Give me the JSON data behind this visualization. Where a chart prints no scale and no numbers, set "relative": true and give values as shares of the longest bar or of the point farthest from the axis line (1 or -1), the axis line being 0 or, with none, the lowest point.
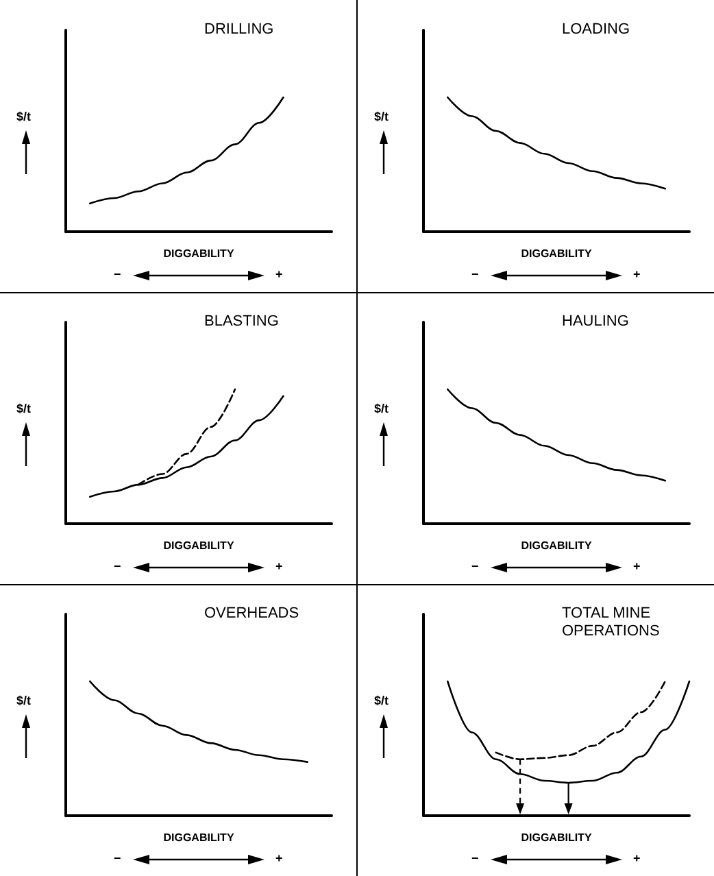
{
  "chart_data": [
    {
      "type": "line",
      "title": "DRILLING",
      "ylabel": "$/t",
      "xlabel": "DIGGABILITY",
      "annotations": [
        "−",
        "+"
      ],
      "relative": true,
      "tick_labels": false,
      "categories": [
        null,
        null,
        null,
        null,
        null,
        null,
        null,
        null,
        null,
        null,
        null,
        null
      ],
      "series": [
        {
          "color": "#000000",
          "values": [
            null,
            0.21,
            0.25,
            0.3,
            0.36,
            0.44,
            0.53,
            0.65,
            0.81,
            1.0,
            null,
            null
          ]
        }
      ]
    },
    {
      "type": "line",
      "title": "LOADING",
      "ylabel": "$/t",
      "xlabel": "DIGGABILITY",
      "annotations": [
        "−",
        "+"
      ],
      "relative": true,
      "tick_labels": false,
      "categories": [
        null,
        null,
        null,
        null,
        null,
        null,
        null,
        null,
        null,
        null,
        null,
        null
      ],
      "series": [
        {
          "color": "#000000",
          "values": [
            null,
            1.0,
            0.86,
            0.75,
            0.66,
            0.58,
            0.51,
            0.45,
            0.4,
            0.36,
            0.32,
            null
          ]
        }
      ]
    },
    {
      "type": "line",
      "title": "BLASTING",
      "ylabel": "$/t",
      "xlabel": "DIGGABILITY",
      "annotations": [
        "−",
        "+"
      ],
      "relative": true,
      "tick_labels": false,
      "categories": [
        null,
        null,
        null,
        null,
        null,
        null,
        null,
        null,
        null,
        null,
        null,
        null
      ],
      "series": [
        {
          "color": "#000000",
          "values": [
            null,
            0.2,
            0.24,
            0.29,
            0.34,
            0.42,
            0.5,
            0.62,
            0.77,
            0.95,
            null,
            null
          ]
        },
        {
          "color": "#000000",
          "line_style": "dashed",
          "values": [
            null,
            null,
            null,
            0.29,
            0.37,
            0.52,
            0.72,
            1.0,
            null,
            null,
            null,
            null
          ]
        }
      ]
    },
    {
      "type": "line",
      "title": "HAULING",
      "ylabel": "$/t",
      "xlabel": "DIGGABILITY",
      "annotations": [
        "−",
        "+"
      ],
      "relative": true,
      "tick_labels": false,
      "categories": [
        null,
        null,
        null,
        null,
        null,
        null,
        null,
        null,
        null,
        null,
        null,
        null
      ],
      "series": [
        {
          "color": "#000000",
          "values": [
            null,
            1.0,
            0.86,
            0.75,
            0.66,
            0.58,
            0.51,
            0.45,
            0.4,
            0.36,
            0.32,
            null
          ]
        }
      ]
    },
    {
      "type": "line",
      "title": "OVERHEADS",
      "ylabel": "$/t",
      "xlabel": "DIGGABILITY",
      "annotations": [
        "−",
        "+"
      ],
      "relative": true,
      "tick_labels": false,
      "categories": [
        null,
        null,
        null,
        null,
        null,
        null,
        null,
        null,
        null,
        null,
        null,
        null
      ],
      "series": [
        {
          "color": "#000000",
          "values": [
            null,
            1.0,
            0.86,
            0.76,
            0.67,
            0.6,
            0.54,
            0.49,
            0.45,
            0.42,
            0.4,
            null
          ]
        }
      ]
    },
    {
      "type": "line",
      "title": "TOTAL MINE OPERATIONS",
      "ylabel": "$/t",
      "xlabel": "DIGGABILITY",
      "annotations": [
        "−",
        "+"
      ],
      "relative": true,
      "tick_labels": false,
      "categories": [
        null,
        null,
        null,
        null,
        null,
        null,
        null,
        null,
        null,
        null,
        null,
        null
      ],
      "series": [
        {
          "color": "#000000",
          "values": [
            null,
            1.0,
            0.62,
            0.42,
            0.31,
            0.26,
            0.245,
            0.26,
            0.32,
            0.44,
            0.64,
            1.0
          ]
        },
        {
          "color": "#000000",
          "line_style": "dashed",
          "values": [
            null,
            null,
            null,
            0.47,
            0.42,
            0.43,
            0.45,
            0.52,
            0.62,
            0.77,
            1.0,
            null
          ]
        }
      ]
    }
  ]
}
